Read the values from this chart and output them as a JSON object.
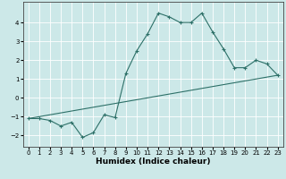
{
  "title": "",
  "xlabel": "Humidex (Indice chaleur)",
  "background_color": "#cce8e8",
  "grid_color": "#ffffff",
  "line_color": "#2d7068",
  "xlim": [
    -0.5,
    23.5
  ],
  "ylim": [
    -2.6,
    5.1
  ],
  "xticks": [
    0,
    1,
    2,
    3,
    4,
    5,
    6,
    7,
    8,
    9,
    10,
    11,
    12,
    13,
    14,
    15,
    16,
    17,
    18,
    19,
    20,
    21,
    22,
    23
  ],
  "yticks": [
    -2,
    -1,
    0,
    1,
    2,
    3,
    4
  ],
  "line1_x": [
    0,
    1,
    2,
    3,
    4,
    5,
    6,
    7,
    8,
    9,
    10,
    11,
    12,
    13,
    14,
    15,
    16,
    17,
    18,
    19,
    20,
    21,
    22,
    23
  ],
  "line1_y": [
    -1.1,
    -1.1,
    -1.2,
    -1.5,
    -1.3,
    -2.1,
    -1.85,
    -0.9,
    -1.05,
    1.3,
    2.5,
    3.4,
    4.5,
    4.3,
    4.0,
    4.0,
    4.5,
    3.5,
    2.6,
    1.6,
    1.6,
    2.0,
    1.8,
    1.2
  ],
  "line2_x": [
    0,
    23
  ],
  "line2_y": [
    -1.1,
    1.2
  ],
  "tick_fontsize": 5.0,
  "xlabel_fontsize": 6.5,
  "linewidth": 0.8,
  "markersize": 2.5
}
